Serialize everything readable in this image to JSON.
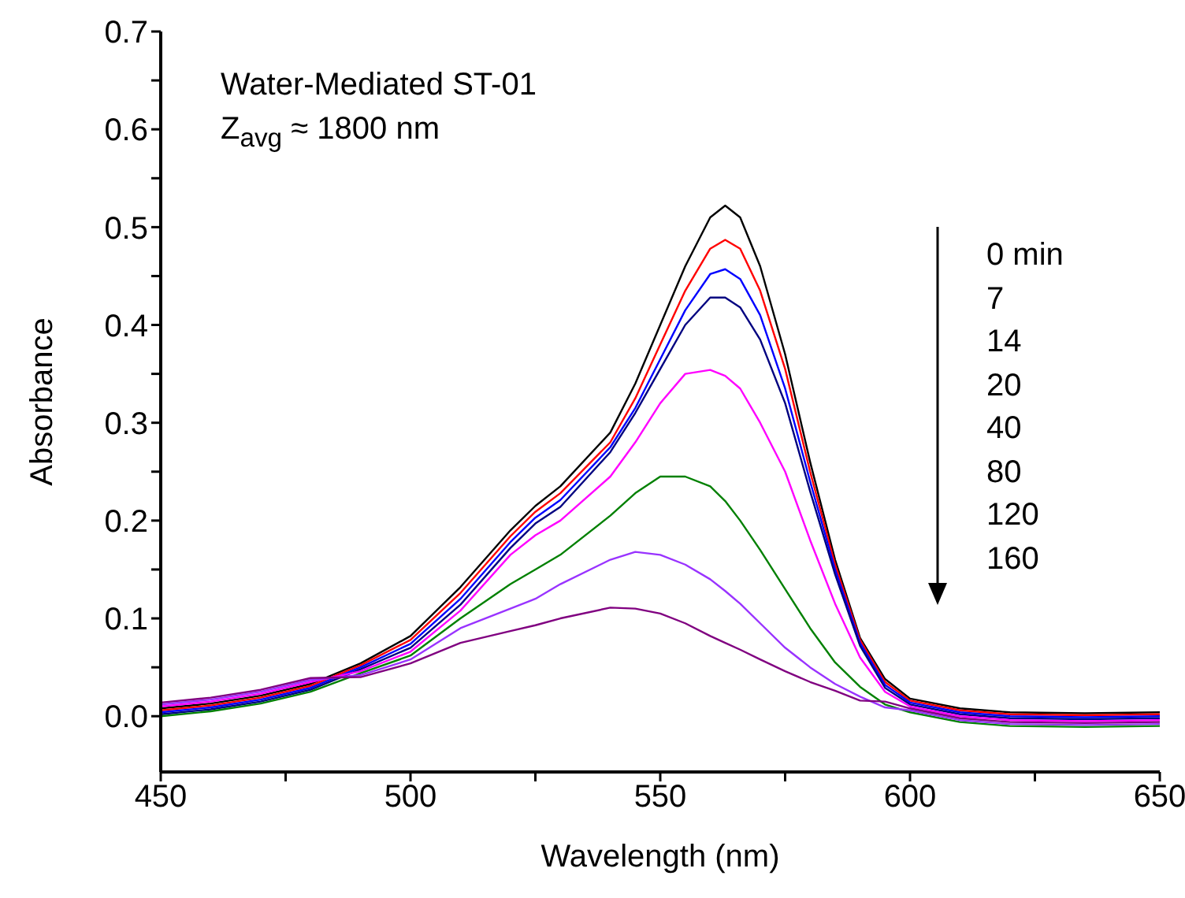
{
  "chart_data": {
    "type": "line",
    "xlabel": "Wavelength (nm)",
    "ylabel": "Absorbance",
    "x": [
      450,
      460,
      470,
      480,
      490,
      500,
      510,
      520,
      525,
      530,
      540,
      545,
      550,
      555,
      560,
      563,
      566,
      570,
      575,
      580,
      585,
      590,
      595,
      600,
      610,
      620,
      635,
      650
    ],
    "series": [
      {
        "color": "#000000",
        "values": [
          0.008,
          0.013,
          0.021,
          0.033,
          0.054,
          0.082,
          0.132,
          0.19,
          0.215,
          0.235,
          0.29,
          0.34,
          0.4,
          0.46,
          0.51,
          0.522,
          0.51,
          0.46,
          0.37,
          0.26,
          0.16,
          0.08,
          0.038,
          0.018,
          0.008,
          0.004,
          0.003,
          0.004
        ]
      },
      {
        "color": "#ff0000",
        "values": [
          0.006,
          0.011,
          0.019,
          0.031,
          0.052,
          0.078,
          0.126,
          0.184,
          0.209,
          0.228,
          0.28,
          0.325,
          0.38,
          0.435,
          0.478,
          0.487,
          0.478,
          0.435,
          0.355,
          0.25,
          0.155,
          0.078,
          0.035,
          0.016,
          0.006,
          0.002,
          0.001,
          0.002
        ]
      },
      {
        "color": "#0000ff",
        "values": [
          0.004,
          0.009,
          0.017,
          0.029,
          0.05,
          0.074,
          0.12,
          0.178,
          0.203,
          0.221,
          0.275,
          0.315,
          0.365,
          0.415,
          0.452,
          0.457,
          0.447,
          0.41,
          0.335,
          0.24,
          0.15,
          0.075,
          0.032,
          0.014,
          0.004,
          0,
          -0.001,
          0
        ]
      },
      {
        "color": "#000080",
        "values": [
          0.002,
          0.007,
          0.015,
          0.027,
          0.048,
          0.07,
          0.114,
          0.172,
          0.197,
          0.214,
          0.27,
          0.31,
          0.355,
          0.4,
          0.428,
          0.428,
          0.418,
          0.385,
          0.32,
          0.23,
          0.145,
          0.072,
          0.029,
          0.012,
          0.002,
          -0.002,
          -0.003,
          -0.002
        ]
      },
      {
        "color": "#ff00ff",
        "values": [
          0.01,
          0.015,
          0.023,
          0.035,
          0.046,
          0.066,
          0.108,
          0.165,
          0.185,
          0.2,
          0.245,
          0.28,
          0.32,
          0.35,
          0.354,
          0.348,
          0.335,
          0.3,
          0.25,
          0.18,
          0.115,
          0.06,
          0.025,
          0.01,
          0,
          -0.004,
          -0.005,
          -0.004
        ]
      },
      {
        "color": "#008000",
        "values": [
          0,
          0.005,
          0.013,
          0.025,
          0.044,
          0.062,
          0.1,
          0.135,
          0.15,
          0.165,
          0.205,
          0.228,
          0.245,
          0.245,
          0.235,
          0.22,
          0.2,
          0.17,
          0.13,
          0.09,
          0.055,
          0.03,
          0.012,
          0.004,
          -0.006,
          -0.01,
          -0.011,
          -0.01
        ]
      },
      {
        "color": "#9933ff",
        "values": [
          0.012,
          0.017,
          0.025,
          0.037,
          0.042,
          0.058,
          0.09,
          0.11,
          0.12,
          0.135,
          0.16,
          0.168,
          0.165,
          0.155,
          0.14,
          0.128,
          0.115,
          0.095,
          0.07,
          0.05,
          0.033,
          0.02,
          0.009,
          0.006,
          -0.004,
          -0.008,
          -0.009,
          -0.008
        ]
      },
      {
        "color": "#800080",
        "values": [
          0.014,
          0.019,
          0.027,
          0.039,
          0.04,
          0.054,
          0.075,
          0.087,
          0.093,
          0.1,
          0.111,
          0.11,
          0.105,
          0.095,
          0.082,
          0.075,
          0.068,
          0.058,
          0.046,
          0.035,
          0.026,
          0.016,
          0.015,
          0.008,
          -0.002,
          -0.006,
          -0.007,
          -0.006
        ]
      }
    ],
    "xlim": [
      450,
      650
    ],
    "xticks": [
      450,
      {
        "value": 475,
        "label": null
      },
      500,
      {
        "value": 525,
        "label": null
      },
      550,
      {
        "value": 575,
        "label": null
      },
      600,
      {
        "value": 625,
        "label": null
      },
      650
    ],
    "ylim": [
      -0.057,
      0.7
    ],
    "yticks": [
      {
        "value": 0,
        "label": "0.0"
      },
      {
        "value": 0.05,
        "label": null
      },
      0.1,
      {
        "value": 0.15,
        "label": null
      },
      0.2,
      {
        "value": 0.25,
        "label": null
      },
      0.3,
      {
        "value": 0.35,
        "label": null
      },
      0.4,
      {
        "value": 0.45,
        "label": null
      },
      0.5,
      {
        "value": 0.55,
        "label": null
      },
      0.6,
      {
        "value": 0.65,
        "label": null
      },
      0.7
    ],
    "annotations": [
      "Water-Mediated ST-01",
      "Z$_{avg}$ ≈ 1800 nm",
      "0 min",
      "7",
      "14",
      "20",
      "40",
      "80",
      "120",
      "160"
    ],
    "marker": "none",
    "line_style": "solid"
  }
}
